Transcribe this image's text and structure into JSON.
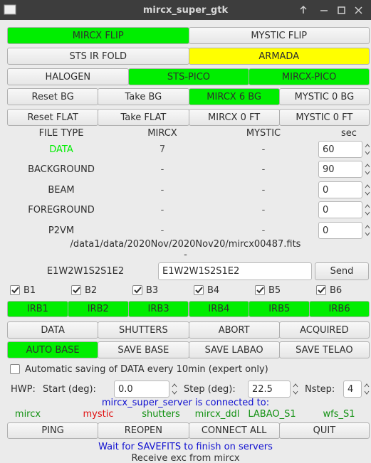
{
  "window": {
    "title": "mircx_super_gtk"
  },
  "button_rows": [
    [
      {
        "label": "MIRCX FLIP",
        "color": "#00ee00"
      },
      {
        "label": "MYSTIC FLIP"
      }
    ],
    [
      {
        "label": "STS IR FOLD"
      },
      {
        "label": "ARMADA",
        "color": "#ffff00"
      }
    ],
    [
      {
        "label": "HALOGEN"
      },
      {
        "label": "STS-PICO",
        "color": "#00ee00"
      },
      {
        "label": "MIRCX-PICO",
        "color": "#00ee00"
      }
    ],
    [
      {
        "label": "Reset BG"
      },
      {
        "label": "Take BG"
      },
      {
        "label": "MIRCX 6 BG",
        "color": "#00ee00"
      },
      {
        "label": "MYSTIC 0 BG"
      }
    ],
    [
      {
        "label": "Reset FLAT"
      },
      {
        "label": "Take FLAT"
      },
      {
        "label": "MIRCX 0 FT"
      },
      {
        "label": "MYSTIC 0 FT"
      }
    ]
  ],
  "file_table": {
    "headers": [
      "FILE TYPE",
      "MIRCX",
      "MYSTIC",
      "sec"
    ],
    "rows": [
      {
        "type": "DATA",
        "color": "#00ee00",
        "mircx": "7",
        "mystic": "-",
        "sec": "60"
      },
      {
        "type": "BACKGROUND",
        "mircx": "-",
        "mystic": "-",
        "sec": "90"
      },
      {
        "type": "BEAM",
        "mircx": "-",
        "mystic": "-",
        "sec": "0"
      },
      {
        "type": "FOREGROUND",
        "mircx": "-",
        "mystic": "-",
        "sec": "0"
      },
      {
        "type": "P2VM",
        "mircx": "-",
        "mystic": "-",
        "sec": "0"
      }
    ]
  },
  "file_path": "/data1/data/2020Nov/2020Nov20/mircx00487.fits",
  "file_path_sub": "-",
  "config": {
    "label": "E1W2W1S2S1E2",
    "entry": "E1W2W1S2S1E2",
    "button": "Send"
  },
  "beams": [
    {
      "label": "B1",
      "checked": true
    },
    {
      "label": "B2",
      "checked": true
    },
    {
      "label": "B3",
      "checked": true
    },
    {
      "label": "B4",
      "checked": true
    },
    {
      "label": "B5",
      "checked": true
    },
    {
      "label": "B6",
      "checked": true
    }
  ],
  "irb_buttons": [
    {
      "label": "IRB1",
      "color": "#00ee00"
    },
    {
      "label": "IRB2",
      "color": "#00ee00"
    },
    {
      "label": "IRB3",
      "color": "#00ee00"
    },
    {
      "label": "IRB4",
      "color": "#00ee00"
    },
    {
      "label": "IRB5",
      "color": "#00ee00"
    },
    {
      "label": "IRB6",
      "color": "#00ee00"
    }
  ],
  "action_rows": [
    [
      {
        "label": "DATA"
      },
      {
        "label": "SHUTTERS"
      },
      {
        "label": "ABORT"
      },
      {
        "label": "ACQUIRED"
      }
    ],
    [
      {
        "label": "AUTO BASE",
        "color": "#00ee00"
      },
      {
        "label": "SAVE BASE"
      },
      {
        "label": "SAVE LABAO"
      },
      {
        "label": "SAVE TELAO"
      }
    ]
  ],
  "autosave": {
    "label": "Automatic saving of DATA every 10min (expert only)",
    "checked": false
  },
  "hwp": {
    "label": "HWP:",
    "start_label": "Start (deg):",
    "start": "0.0",
    "step_label": "Step (deg):",
    "step": "22.5",
    "nstep_label": "Nstep:",
    "nstep": "4"
  },
  "server": {
    "message": "mircx_super_server is connected to:",
    "color": "#1010d0",
    "connections": [
      {
        "name": "mircx",
        "color": "#109010"
      },
      {
        "name": "mystic",
        "color": "#e01010"
      },
      {
        "name": "shutters",
        "color": "#109010"
      },
      {
        "name": "mircx_ddl",
        "color": "#109010"
      },
      {
        "name": "LABAO_S1",
        "color": "#109010"
      },
      {
        "name": "wfs_S1",
        "color": "#109010"
      }
    ]
  },
  "bottom_buttons": [
    {
      "label": "PING"
    },
    {
      "label": "REOPEN"
    },
    {
      "label": "CONNECT ALL"
    },
    {
      "label": "QUIT"
    }
  ],
  "status": [
    {
      "text": "Wait for SAVEFITS to finish on servers",
      "color": "#1010d0"
    },
    {
      "text": "Receive exc from mircx",
      "color": "#333333"
    }
  ]
}
